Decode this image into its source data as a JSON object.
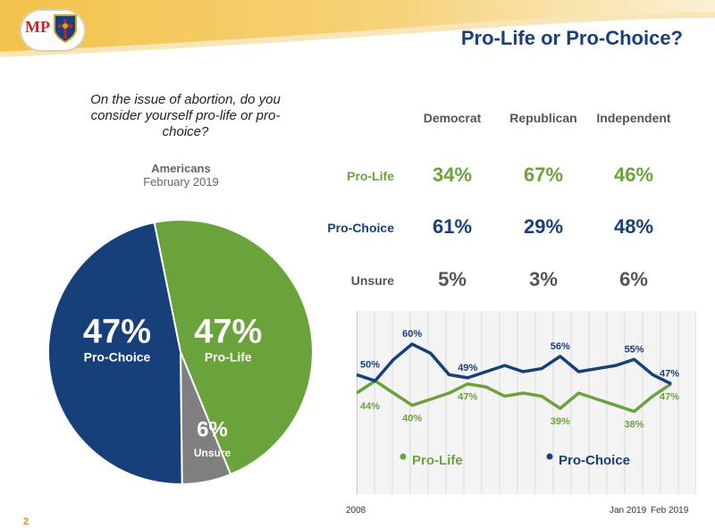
{
  "header": {
    "logo_text": "MP",
    "title": "Pro-Life or Pro-Choice?"
  },
  "question": "On the issue of abortion, do you consider yourself pro-life or pro-choice?",
  "pie_header": {
    "line1": "Americans",
    "line2": "February 2019"
  },
  "page_number": "2",
  "colors": {
    "pro_life": "#6aa33b",
    "pro_choice": "#173f7a",
    "unsure": "#7f7f7f",
    "banner": "#eeb53a",
    "title": "#1a3f7a"
  },
  "chart_data": [
    {
      "type": "pie",
      "slices": [
        {
          "label": "Pro-Life",
          "value": 47,
          "display": "47%",
          "color": "#6aa33b"
        },
        {
          "label": "Unsure",
          "value": 6,
          "display": "6%",
          "color": "#7f7f7f"
        },
        {
          "label": "Pro-Choice",
          "value": 47,
          "display": "47%",
          "color": "#173f7a"
        }
      ]
    },
    {
      "type": "table",
      "columns": [
        "Democrat",
        "Republican",
        "Independent"
      ],
      "rows": [
        {
          "label": "Pro-Life",
          "values": [
            "34%",
            "67%",
            "46%"
          ],
          "color": "#6aa33b"
        },
        {
          "label": "Pro-Choice",
          "values": [
            "61%",
            "29%",
            "48%"
          ],
          "color": "#173f7a"
        },
        {
          "label": "Unsure",
          "values": [
            "5%",
            "3%",
            "6%"
          ],
          "color": "#555555"
        }
      ]
    },
    {
      "type": "line",
      "x_labels": [
        "2008",
        "Jan 2019",
        "Feb 2019"
      ],
      "ylim": [
        30,
        65
      ],
      "grid": true,
      "series": [
        {
          "name": "Pro-Life",
          "color": "#6aa33b",
          "values": [
            44,
            48,
            44,
            40,
            42,
            44,
            47,
            46,
            43,
            44,
            43,
            39,
            44,
            42,
            40,
            38,
            43,
            47
          ],
          "labels": [
            {
              "index": 0,
              "text": "44%"
            },
            {
              "index": 3,
              "text": "40%"
            },
            {
              "index": 6,
              "text": "47%"
            },
            {
              "index": 11,
              "text": "39%"
            },
            {
              "index": 15,
              "text": "38%"
            },
            {
              "index": 17,
              "text": "47%"
            }
          ]
        },
        {
          "name": "Pro-Choice",
          "color": "#173f7a",
          "values": [
            50,
            48,
            55,
            60,
            57,
            50,
            49,
            51,
            53,
            51,
            52,
            56,
            51,
            52,
            53,
            55,
            50,
            47
          ],
          "labels": [
            {
              "index": 0,
              "text": "50%"
            },
            {
              "index": 3,
              "text": "60%"
            },
            {
              "index": 6,
              "text": "49%"
            },
            {
              "index": 11,
              "text": "56%"
            },
            {
              "index": 15,
              "text": "55%"
            },
            {
              "index": 17,
              "text": "47%"
            }
          ]
        }
      ]
    }
  ]
}
